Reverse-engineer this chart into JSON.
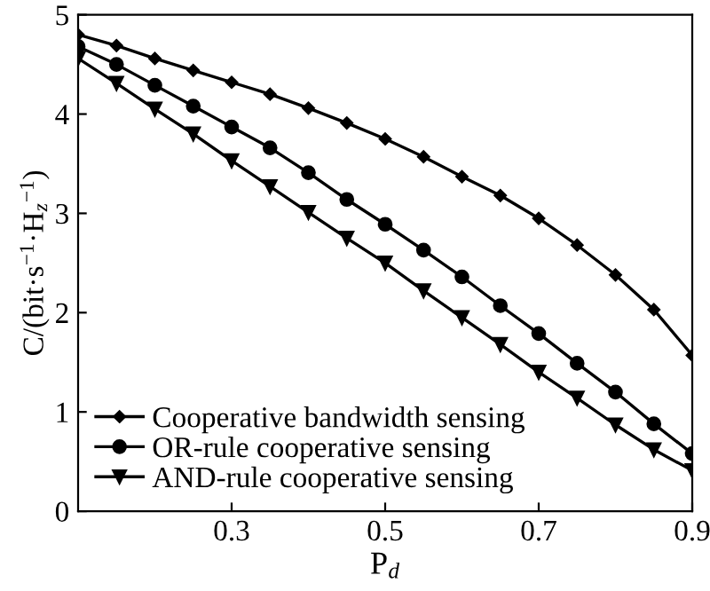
{
  "chart_data": {
    "type": "line",
    "xlabel": "P$_{d}$",
    "ylabel": "C/(bit·s$^{−1}$·H$_{z}$$^{−1}$)",
    "x": [
      0.1,
      0.15,
      0.2,
      0.25,
      0.3,
      0.35,
      0.4,
      0.45,
      0.5,
      0.55,
      0.6,
      0.65,
      0.7,
      0.75,
      0.8,
      0.85,
      0.9
    ],
    "series": [
      {
        "name": "Cooperative bandwidth sensing",
        "color": "#000000",
        "marker": "diamond",
        "values": [
          4.8,
          4.69,
          4.56,
          4.44,
          4.32,
          4.2,
          4.06,
          3.91,
          3.75,
          3.57,
          3.37,
          3.18,
          2.95,
          2.68,
          2.38,
          2.03,
          1.57
        ]
      },
      {
        "name": "OR-rule cooperative sensing",
        "color": "#000000",
        "marker": "circle",
        "values": [
          4.68,
          4.5,
          4.29,
          4.08,
          3.87,
          3.66,
          3.41,
          3.14,
          2.89,
          2.63,
          2.36,
          2.07,
          1.79,
          1.49,
          1.2,
          0.88,
          0.58
        ]
      },
      {
        "name": "AND-rule cooperative sensing",
        "color": "#000000",
        "marker": "triangle",
        "values": [
          4.56,
          4.31,
          4.05,
          3.8,
          3.53,
          3.27,
          3.01,
          2.75,
          2.5,
          2.22,
          1.95,
          1.68,
          1.4,
          1.14,
          0.87,
          0.62,
          0.41
        ]
      }
    ],
    "xlim": [
      0.1,
      0.9
    ],
    "xticks": [
      0.3,
      0.5,
      0.7,
      0.9
    ],
    "ylim": [
      0,
      5
    ],
    "yticks": [
      0,
      1,
      2,
      3,
      4,
      5
    ],
    "grid": false,
    "legend": "bottom left",
    "line_style": "solid"
  }
}
